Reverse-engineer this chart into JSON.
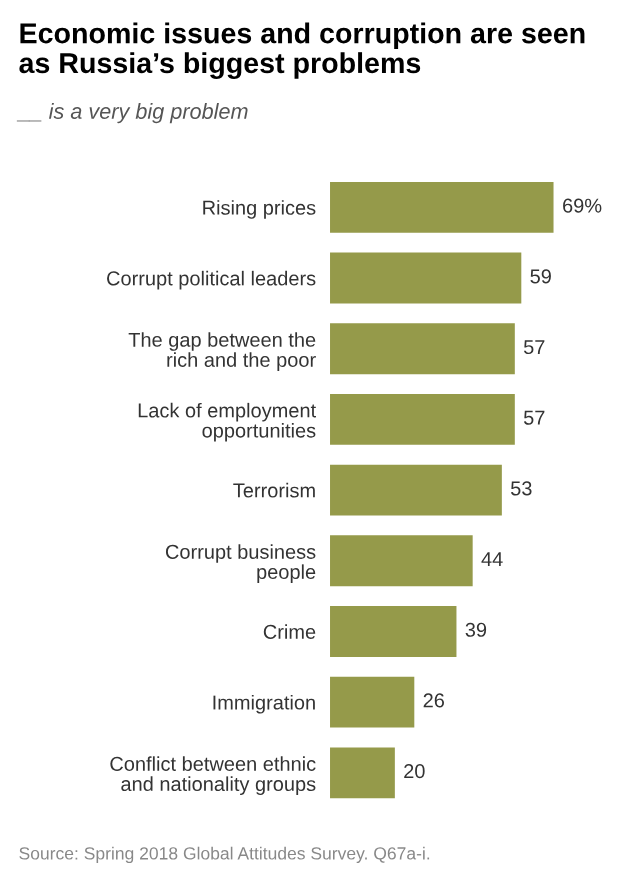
{
  "chart_data": {
    "type": "bar",
    "orientation": "horizontal",
    "title": "Economic issues and corruption are seen as Russia’s biggest problems",
    "subtitle": "__ is a very big problem",
    "categories": [
      "Rising prices",
      "Corrupt political leaders",
      "The gap between the\nrich and the poor",
      "Lack of employment\nopportunities",
      "Terrorism",
      "Corrupt business\npeople",
      "Crime",
      "Immigration",
      "Conflict between ethnic\nand nationality groups"
    ],
    "values": [
      69,
      59,
      57,
      57,
      53,
      44,
      39,
      26,
      20
    ],
    "value_labels": [
      "69%",
      "59",
      "57",
      "57",
      "53",
      "44",
      "39",
      "26",
      "20"
    ],
    "color": "#959a4a",
    "annotations": [
      "Source: Spring 2018 Global Attitudes Survey. Q67a-i."
    ]
  }
}
